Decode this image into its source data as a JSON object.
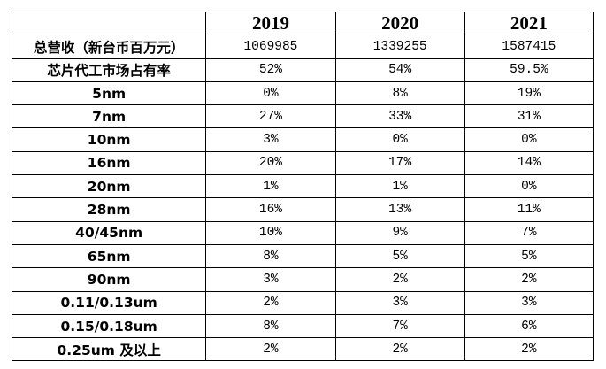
{
  "table": {
    "corner": "",
    "years": [
      "2019",
      "2020",
      "2021"
    ],
    "rows": [
      {
        "label": "总营收（新台币百万元）",
        "values": [
          "1069985",
          "1339255",
          "1587415"
        ]
      },
      {
        "label": "芯片代工市场占有率",
        "values": [
          "52%",
          "54%",
          "59.5%"
        ]
      },
      {
        "label": "5nm",
        "values": [
          "0%",
          "8%",
          "19%"
        ]
      },
      {
        "label": "7nm",
        "values": [
          "27%",
          "33%",
          "31%"
        ]
      },
      {
        "label": "10nm",
        "values": [
          "3%",
          "0%",
          "0%"
        ]
      },
      {
        "label": "16nm",
        "values": [
          "20%",
          "17%",
          "14%"
        ]
      },
      {
        "label": "20nm",
        "values": [
          "1%",
          "1%",
          "0%"
        ]
      },
      {
        "label": "28nm",
        "values": [
          "16%",
          "13%",
          "11%"
        ]
      },
      {
        "label": "40/45nm",
        "values": [
          "10%",
          "9%",
          "7%"
        ]
      },
      {
        "label": "65nm",
        "values": [
          "8%",
          "5%",
          "5%"
        ]
      },
      {
        "label": "90nm",
        "values": [
          "3%",
          "2%",
          "2%"
        ]
      },
      {
        "label": "0.11/0.13um",
        "values": [
          "2%",
          "3%",
          "3%"
        ]
      },
      {
        "label": "0.15/0.18um",
        "values": [
          "8%",
          "7%",
          "6%"
        ]
      },
      {
        "label": "0.25um 及以上",
        "values": [
          "2%",
          "2%",
          "2%"
        ]
      }
    ]
  }
}
